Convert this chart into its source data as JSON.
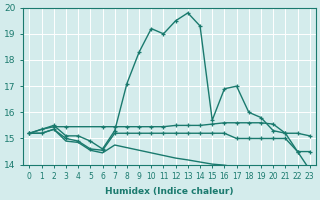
{
  "xlabel": "Humidex (Indice chaleur)",
  "xlim": [
    -0.5,
    23.5
  ],
  "ylim": [
    14,
    20
  ],
  "yticks": [
    14,
    15,
    16,
    17,
    18,
    19,
    20
  ],
  "xticks": [
    0,
    1,
    2,
    3,
    4,
    5,
    6,
    7,
    8,
    9,
    10,
    11,
    12,
    13,
    14,
    15,
    16,
    17,
    18,
    19,
    20,
    21,
    22,
    23
  ],
  "bg_color": "#d4ecec",
  "grid_color": "#c0dddd",
  "line_color": "#1a7a6e",
  "lines": [
    {
      "x": [
        0,
        2,
        3,
        4,
        5,
        6,
        7,
        8,
        9,
        10,
        11,
        12,
        13,
        14,
        15,
        16,
        17,
        18,
        19,
        20,
        21,
        22,
        23
      ],
      "y": [
        15.2,
        15.5,
        15.1,
        15.1,
        14.9,
        14.6,
        15.3,
        17.1,
        18.3,
        19.2,
        19.0,
        19.5,
        19.8,
        19.3,
        15.7,
        16.9,
        17.0,
        16.0,
        15.8,
        15.3,
        15.2,
        14.5,
        13.8
      ],
      "marker": "+",
      "lw": 1.0
    },
    {
      "x": [
        0,
        1,
        2,
        3,
        6,
        7,
        8,
        9,
        10,
        11,
        12,
        13,
        14,
        15,
        16,
        17,
        18,
        19,
        20,
        21,
        22,
        23
      ],
      "y": [
        15.2,
        15.35,
        15.45,
        15.45,
        15.45,
        15.45,
        15.45,
        15.45,
        15.45,
        15.45,
        15.5,
        15.5,
        15.5,
        15.55,
        15.6,
        15.6,
        15.6,
        15.6,
        15.55,
        15.2,
        15.2,
        15.1
      ],
      "marker": "+",
      "lw": 1.0
    },
    {
      "x": [
        0,
        1,
        2,
        3,
        4,
        5,
        6,
        7,
        8,
        9,
        10,
        11,
        12,
        13,
        14,
        15,
        16,
        17,
        18,
        19,
        20,
        21,
        22,
        23
      ],
      "y": [
        15.2,
        15.2,
        15.35,
        15.0,
        14.9,
        14.6,
        14.55,
        15.2,
        15.2,
        15.2,
        15.2,
        15.2,
        15.2,
        15.2,
        15.2,
        15.2,
        15.2,
        15.0,
        15.0,
        15.0,
        15.0,
        15.0,
        14.5,
        14.5
      ],
      "marker": "+",
      "lw": 1.0
    },
    {
      "x": [
        0,
        1,
        2,
        3,
        4,
        5,
        6,
        7,
        8,
        9,
        10,
        11,
        12,
        13,
        14,
        15,
        16,
        17,
        18,
        19,
        20,
        21,
        22,
        23
      ],
      "y": [
        15.2,
        15.2,
        15.35,
        14.9,
        14.85,
        14.55,
        14.45,
        14.75,
        14.65,
        14.55,
        14.45,
        14.35,
        14.25,
        14.18,
        14.1,
        14.02,
        13.98,
        13.9,
        13.85,
        13.82,
        13.8,
        13.77,
        13.72,
        13.75
      ],
      "marker": null,
      "lw": 1.0
    }
  ]
}
